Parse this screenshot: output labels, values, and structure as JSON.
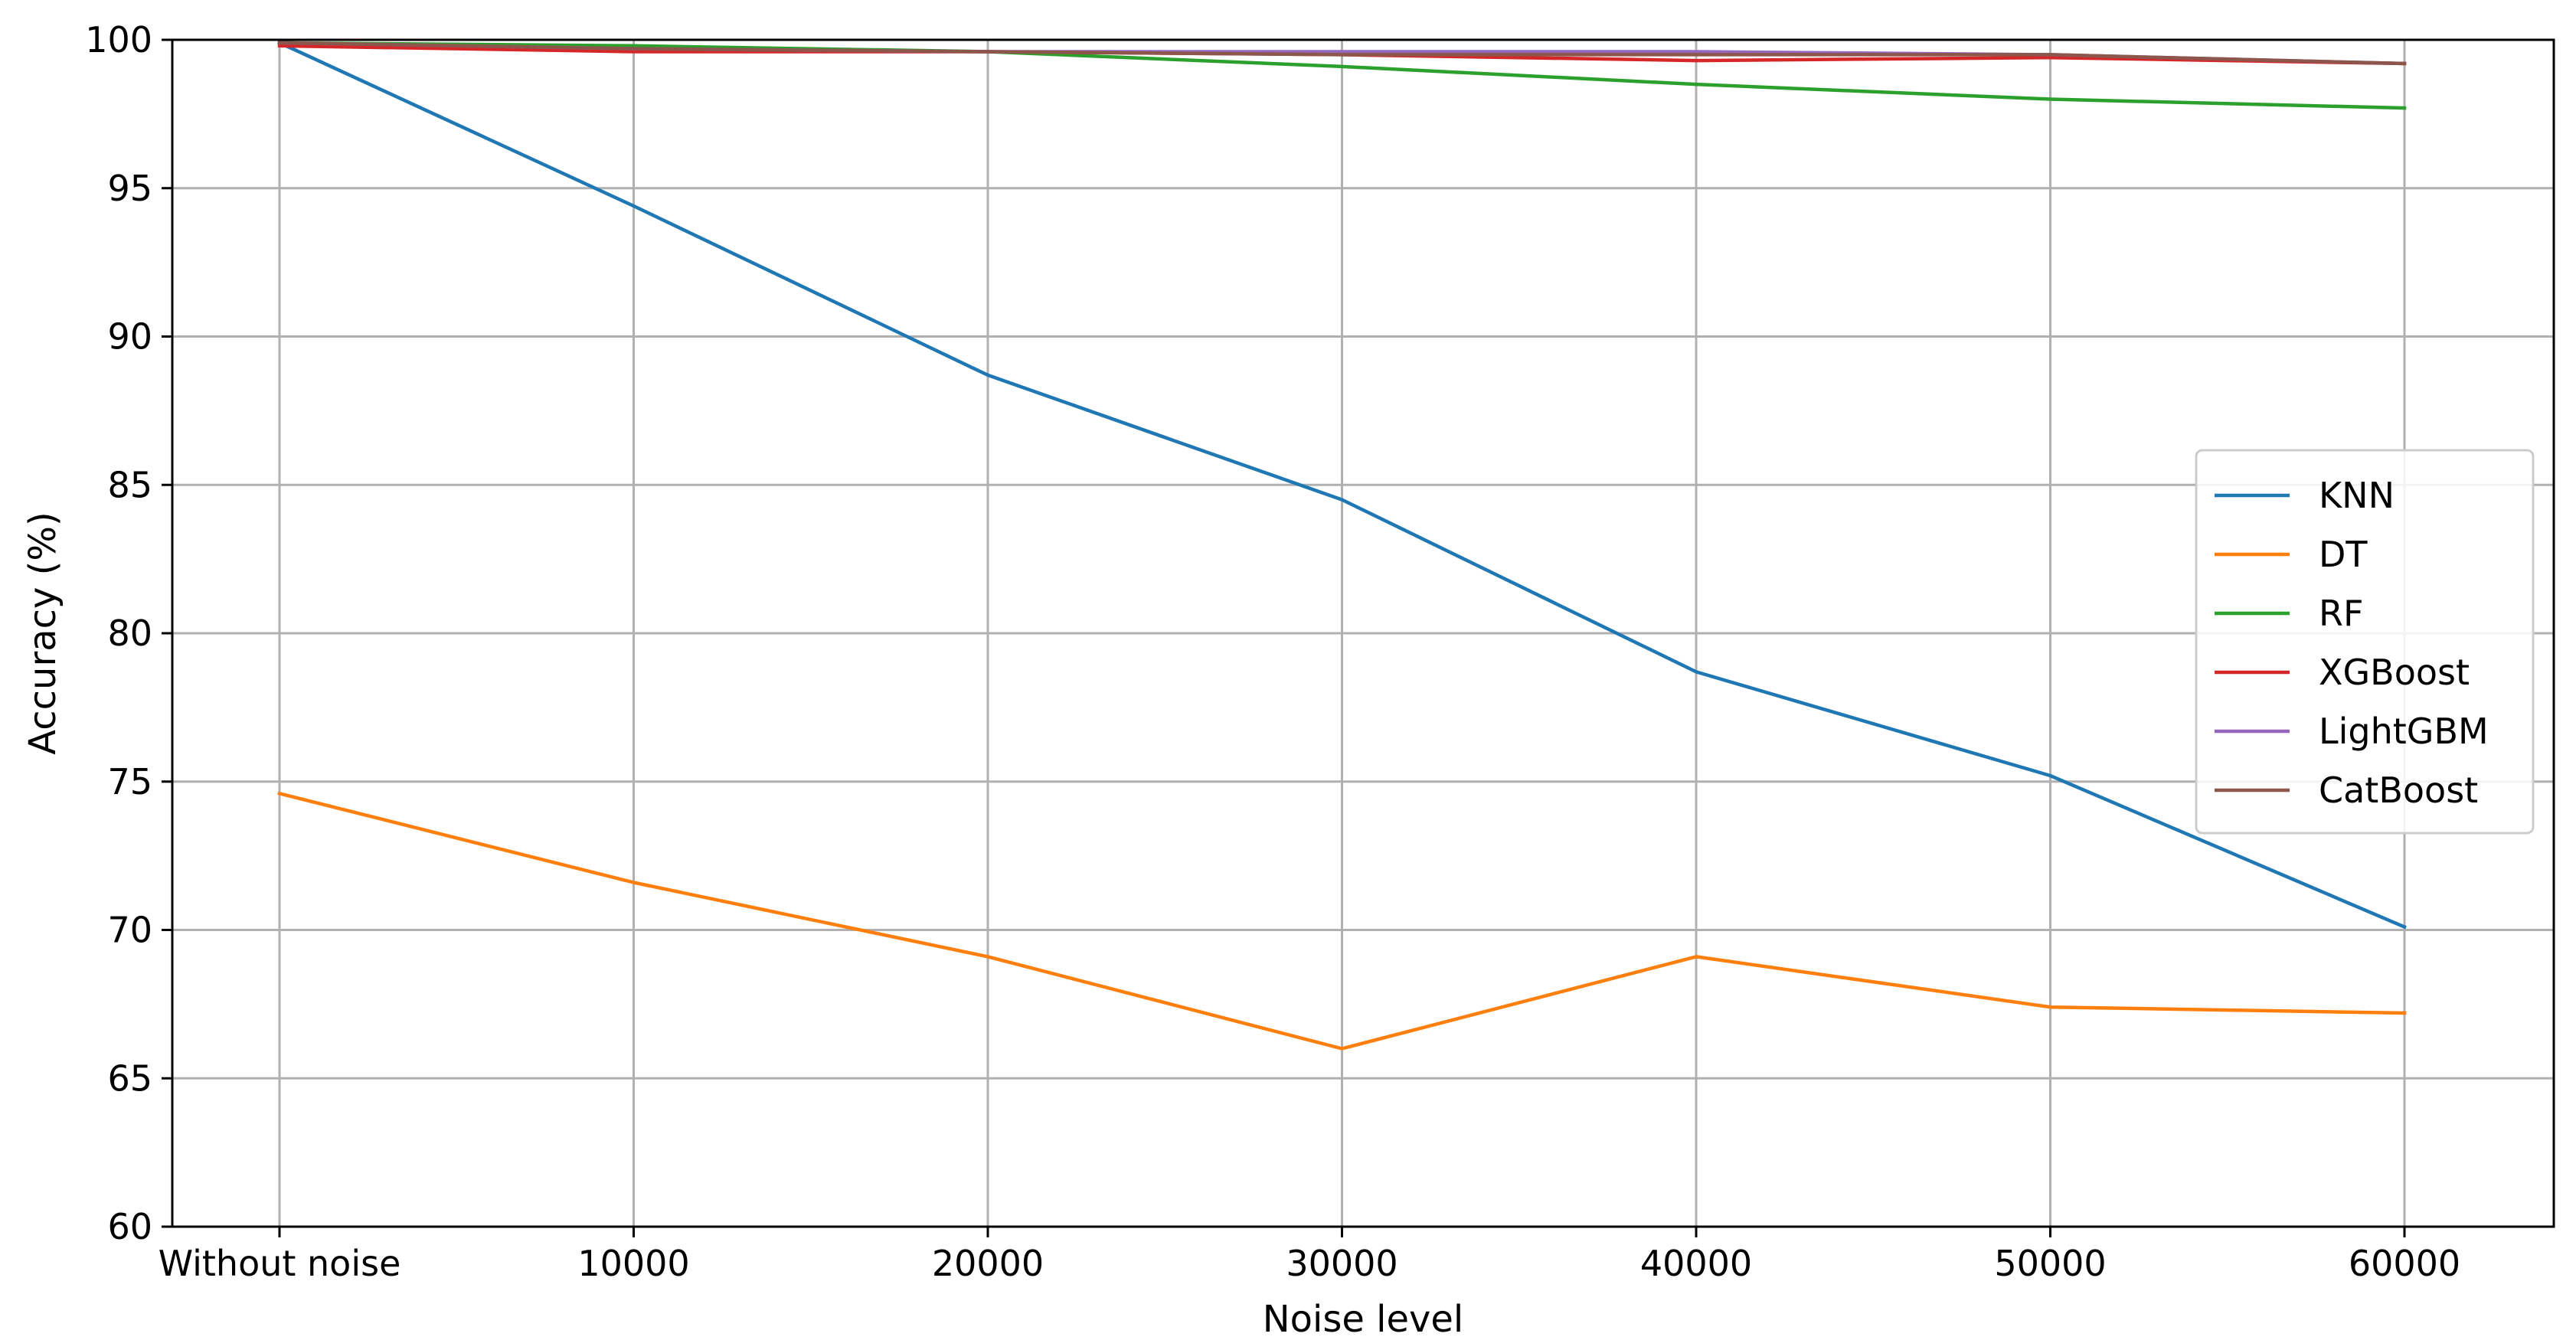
{
  "chart_data": {
    "type": "line",
    "title": "",
    "xlabel": "Noise level",
    "ylabel": "Accuracy (%)",
    "categories": [
      "Without noise",
      "10000",
      "20000",
      "30000",
      "40000",
      "50000",
      "60000"
    ],
    "ylim": [
      60,
      100
    ],
    "yticks": [
      60,
      65,
      70,
      75,
      80,
      85,
      90,
      95,
      100
    ],
    "grid": true,
    "legend_position": "center-right",
    "series": [
      {
        "name": "KNN",
        "color": "#1f77b4",
        "values": [
          99.9,
          94.4,
          88.7,
          84.5,
          78.7,
          75.2,
          70.1
        ]
      },
      {
        "name": "DT",
        "color": "#ff7f0e",
        "values": [
          74.6,
          71.6,
          69.1,
          66.0,
          69.1,
          67.4,
          67.2
        ]
      },
      {
        "name": "RF",
        "color": "#2ca02c",
        "values": [
          99.9,
          99.8,
          99.6,
          99.1,
          98.5,
          98.0,
          97.7
        ]
      },
      {
        "name": "XGBoost",
        "color": "#d62728",
        "values": [
          99.8,
          99.6,
          99.6,
          99.5,
          99.3,
          99.4,
          99.2
        ]
      },
      {
        "name": "LightGBM",
        "color": "#9467bd",
        "values": [
          99.9,
          99.7,
          99.6,
          99.6,
          99.6,
          99.5,
          99.2
        ]
      },
      {
        "name": "CatBoost",
        "color": "#8c564b",
        "values": [
          99.9,
          99.7,
          99.6,
          99.5,
          99.5,
          99.5,
          99.2
        ]
      }
    ]
  }
}
